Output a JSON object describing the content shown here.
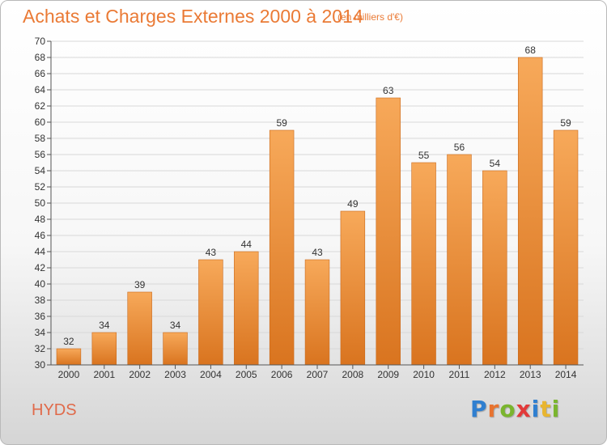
{
  "header": {
    "title": "Achats et Charges Externes 2000 à 2014",
    "unit": "(en milliers d'€)"
  },
  "footer": {
    "city": "HYDS",
    "logo": "Proxiti",
    "logo_letters": [
      {
        "ch": "P",
        "color": "#2f7fd0"
      },
      {
        "ch": "r",
        "color": "#e8732f"
      },
      {
        "ch": "o",
        "color": "#7ab52e"
      },
      {
        "ch": "x",
        "color": "#e23a3a"
      },
      {
        "ch": "i",
        "color": "#2f7fd0"
      },
      {
        "ch": "t",
        "color": "#e8b52f"
      },
      {
        "ch": "i",
        "color": "#7ab52e"
      }
    ]
  },
  "colors": {
    "bar_top": "#f7a95a",
    "bar_bottom": "#d9741f",
    "bar_stroke": "#c9691c",
    "grid": "#d8d8d8",
    "title": "#ea7a35"
  },
  "chart_data": {
    "type": "bar",
    "title": "Achats et Charges Externes 2000 à 2014",
    "subtitle": "(en milliers d'€)",
    "xlabel": "",
    "ylabel": "",
    "categories": [
      "2000",
      "2001",
      "2002",
      "2003",
      "2004",
      "2005",
      "2006",
      "2007",
      "2008",
      "2009",
      "2010",
      "2011",
      "2012",
      "2013",
      "2014"
    ],
    "values": [
      32,
      34,
      39,
      34,
      43,
      44,
      59,
      43,
      49,
      63,
      55,
      56,
      54,
      68,
      59
    ],
    "ylim": [
      30,
      70
    ],
    "yticks": [
      30,
      32,
      34,
      36,
      38,
      40,
      42,
      44,
      46,
      48,
      50,
      52,
      54,
      56,
      58,
      60,
      62,
      64,
      66,
      68,
      70
    ],
    "grid": true,
    "legend": "none"
  }
}
